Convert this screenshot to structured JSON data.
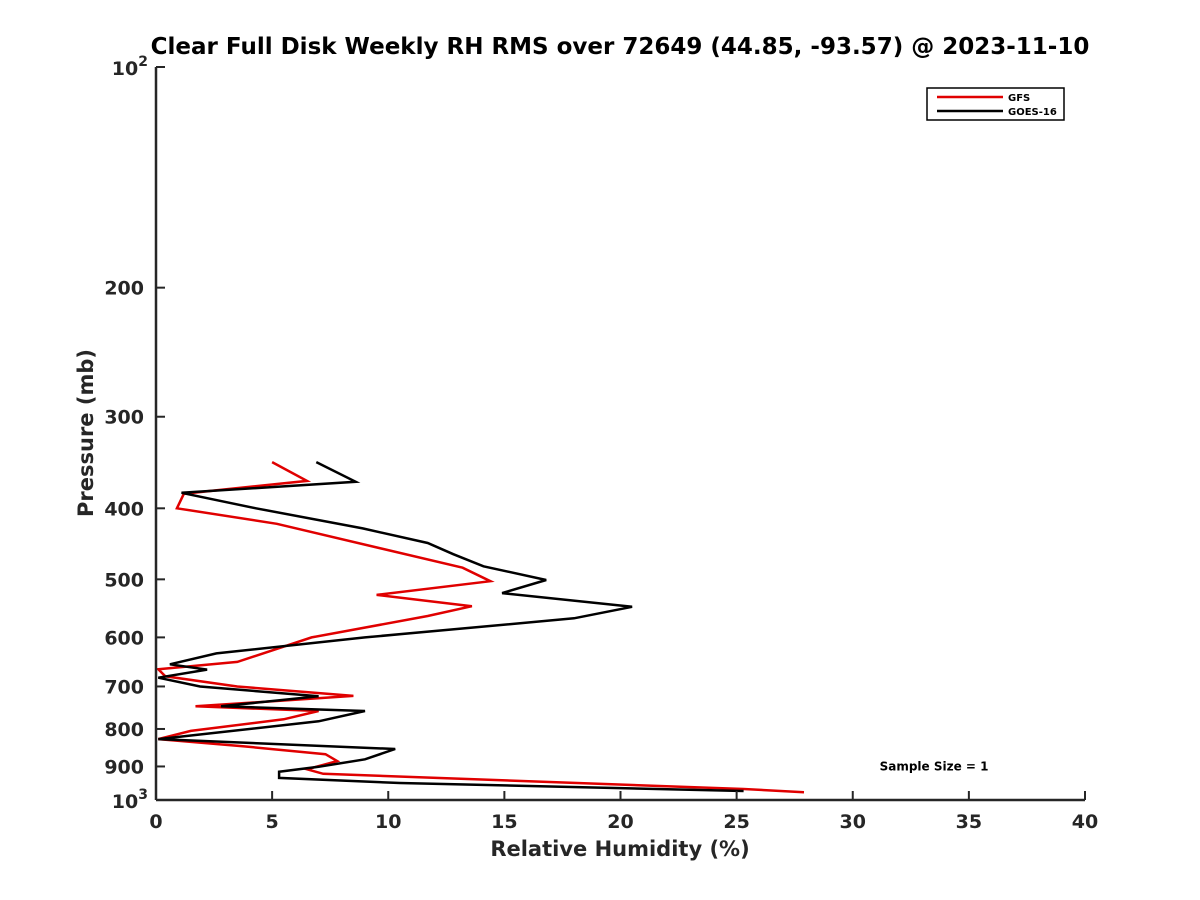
{
  "chart_data": {
    "type": "line",
    "title": "Clear Full Disk Weekly RH RMS over 72649 (44.85, -93.57) @ 2023-11-10",
    "xlabel": "Relative Humidity (%)",
    "ylabel": "Pressure (mb)",
    "xlim": [
      0,
      40
    ],
    "ylim": [
      100,
      1000
    ],
    "y_scale": "log",
    "y_reversed": true,
    "x_ticks": [
      0,
      5,
      10,
      15,
      20,
      25,
      30,
      35,
      40
    ],
    "y_ticks": [
      100,
      200,
      300,
      400,
      500,
      600,
      700,
      800,
      900,
      1000
    ],
    "y_tick_labels": {
      "100": {
        "base": "10",
        "exp": "2"
      },
      "1000": {
        "base": "10",
        "exp": "3"
      }
    },
    "grid": false,
    "legend_placement": "top-right",
    "series": [
      {
        "name": "GFS",
        "color": "#e00000",
        "points": [
          [
            5.0,
            346
          ],
          [
            6.5,
            367
          ],
          [
            1.2,
            382
          ],
          [
            0.9,
            400
          ],
          [
            5.2,
            420
          ],
          [
            13.2,
            482
          ],
          [
            14.4,
            503
          ],
          [
            9.5,
            525
          ],
          [
            13.6,
            544
          ],
          [
            11.7,
            561
          ],
          [
            6.7,
            600
          ],
          [
            3.5,
            648
          ],
          [
            0.1,
            663
          ],
          [
            0.4,
            678
          ],
          [
            3.5,
            700
          ],
          [
            8.5,
            721
          ],
          [
            1.7,
            745
          ],
          [
            7.0,
            756
          ],
          [
            5.5,
            776
          ],
          [
            1.5,
            805
          ],
          [
            0.1,
            826
          ],
          [
            3.8,
            845
          ],
          [
            7.3,
            866
          ],
          [
            7.8,
            885
          ],
          [
            6.5,
            908
          ],
          [
            7.2,
            921
          ],
          [
            25.3,
            966
          ],
          [
            27.9,
            976
          ]
        ]
      },
      {
        "name": "GOES-16",
        "color": "#000000",
        "points": [
          [
            6.9,
            346
          ],
          [
            8.6,
            368
          ],
          [
            1.1,
            381
          ],
          [
            4.3,
            400
          ],
          [
            8.9,
            426
          ],
          [
            11.7,
            446
          ],
          [
            12.8,
            462
          ],
          [
            14.1,
            480
          ],
          [
            16.8,
            501
          ],
          [
            14.9,
            522
          ],
          [
            20.5,
            545
          ],
          [
            18.0,
            565
          ],
          [
            9.0,
            600
          ],
          [
            2.6,
            631
          ],
          [
            0.6,
            653
          ],
          [
            2.2,
            664
          ],
          [
            0.1,
            681
          ],
          [
            1.9,
            700
          ],
          [
            7.0,
            722
          ],
          [
            2.8,
            745
          ],
          [
            9.0,
            756
          ],
          [
            7.0,
            781
          ],
          [
            0.1,
            826
          ],
          [
            10.3,
            852
          ],
          [
            9.0,
            880
          ],
          [
            7.0,
            901
          ],
          [
            5.3,
            915
          ],
          [
            5.3,
            933
          ],
          [
            10.5,
            948
          ],
          [
            25.3,
            972
          ]
        ]
      }
    ],
    "annotations": [
      {
        "text": "Sample Size = 1",
        "x": 33.5,
        "y": 900
      }
    ]
  }
}
